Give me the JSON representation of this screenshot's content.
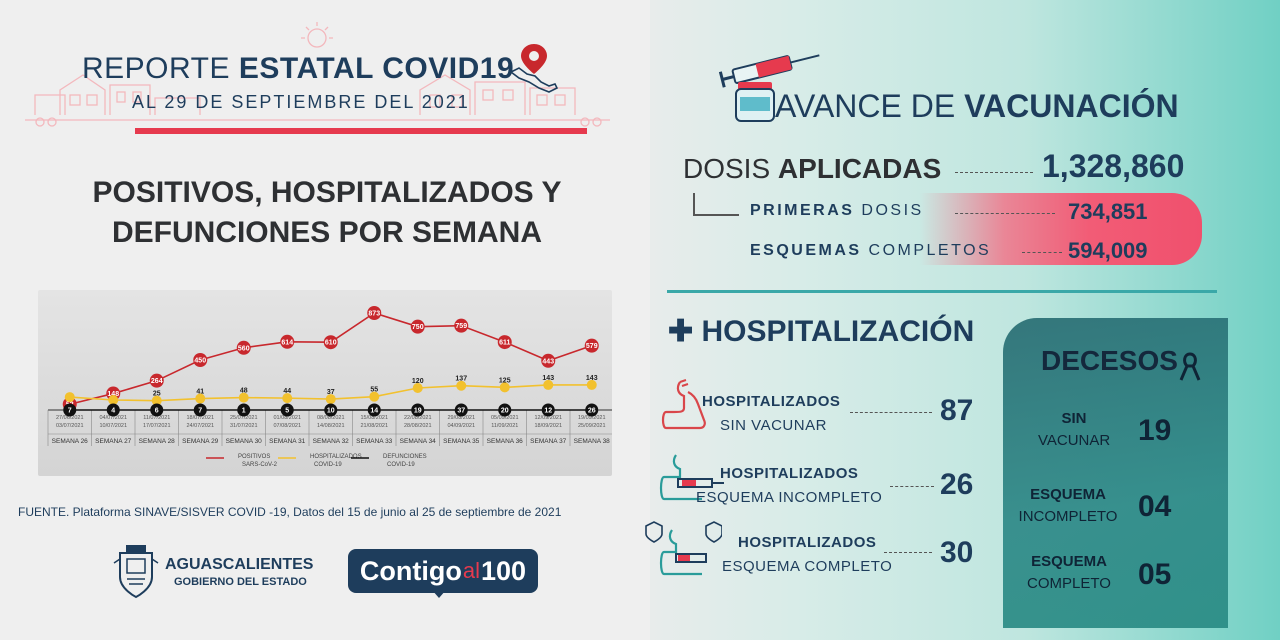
{
  "header": {
    "title_light": "REPORTE",
    "title_bold": "ESTATAL COVID19",
    "date_line": "AL 29 DE SEPTIEMBRE DEL 2021"
  },
  "section_heading_1": "POSITIVOS, HOSPITALIZADOS Y",
  "section_heading_2": "DEFUNCIONES POR SEMANA",
  "chart_data": {
    "type": "line",
    "categories": [
      "SEMANA 26",
      "SEMANA 27",
      "SEMANA 28",
      "SEMANA 29",
      "SEMANA 30",
      "SEMANA 31",
      "SEMANA 32",
      "SEMANA 33",
      "SEMANA 34",
      "SEMANA 35",
      "SEMANA 36",
      "SEMANA 37",
      "SEMANA 38"
    ],
    "date_ranges": [
      [
        "27/06/2021",
        "03/07/2021"
      ],
      [
        "04/07/2021",
        "10/07/2021"
      ],
      [
        "11/07/2021",
        "17/07/2021"
      ],
      [
        "18/07/2021",
        "24/07/2021"
      ],
      [
        "25/07/2021",
        "31/07/2021"
      ],
      [
        "01/08/2021",
        "07/08/2021"
      ],
      [
        "08/08/2021",
        "14/08/2021"
      ],
      [
        "15/08/2021",
        "21/08/2021"
      ],
      [
        "22/08/2021",
        "28/08/2021"
      ],
      [
        "29/08/2021",
        "04/09/2021"
      ],
      [
        "05/09/2021",
        "11/09/2021"
      ],
      [
        "12/09/2021",
        "18/09/2021"
      ],
      [
        "19/09/2021",
        "25/09/2021"
      ]
    ],
    "series": [
      {
        "name": "POSITIVOS SARS-CoV-2",
        "color": "#c8282d",
        "values": [
          52,
          148,
          264,
          450,
          560,
          614,
          610,
          873,
          750,
          759,
          611,
          443,
          579
        ]
      },
      {
        "name": "HOSPITALIZADOS COVID-19",
        "color": "#f2c12e",
        "values": [
          52,
          30,
          25,
          41,
          48,
          44,
          37,
          55,
          120,
          137,
          125,
          143,
          143
        ]
      },
      {
        "name": "DEFUNCIONES COVID-19",
        "color": "#111111",
        "values": [
          7,
          4,
          6,
          7,
          1,
          5,
          10,
          14,
          19,
          37,
          20,
          12,
          26
        ]
      }
    ],
    "point_labels": [
      [
        "52",
        "148",
        "264",
        "450",
        "560",
        "614",
        "610",
        "873",
        "750",
        "759",
        "611",
        "443",
        "579"
      ],
      [
        "",
        "",
        "25",
        "41",
        "48",
        "44",
        "37",
        "55",
        "120",
        "137",
        "125",
        "143",
        "143"
      ],
      [
        "7",
        "4",
        "6",
        "7",
        "1",
        "5",
        "10",
        "14",
        "19",
        "37",
        "20",
        "12",
        "26"
      ]
    ],
    "legend": [
      {
        "line1": "POSITIVOS",
        "line2": "SARS-CoV-2"
      },
      {
        "line1": "HOSPITALIZADOS",
        "line2": "COVID-19"
      },
      {
        "line1": "DEFUNCIONES",
        "line2": "COVID-19"
      }
    ],
    "legend_position": "bottom"
  },
  "source_text": "FUENTE. Plataforma SINAVE/SISVER COVID -19, Datos del 15 de junio al 25 de septiembre de 2021",
  "logos": {
    "ags_name": "AGUASCALIENTES",
    "ags_sub": "GOBIERNO DEL ESTADO",
    "contigo_a": "Contigo",
    "contigo_b": "al",
    "contigo_c": "100"
  },
  "vaccination": {
    "title_light": "AVANCE DE",
    "title_bold": "VACUNACIÓN",
    "dosis_light": "DOSIS",
    "dosis_bold": "APLICADAS",
    "dosis_total": "1,328,860",
    "primeras_bold": "PRIMERAS",
    "primeras_light": "DOSIS",
    "primeras_val": "734,851",
    "esquemas_bold": "ESQUEMAS",
    "esquemas_light": "COMPLETOS",
    "esquemas_val": "594,009"
  },
  "hospitalization": {
    "title": "HOSPITALIZACIÓN",
    "rows": [
      {
        "bold": "HOSPITALIZADOS",
        "light": "SIN VACUNAR",
        "value": "87"
      },
      {
        "bold": "HOSPITALIZADOS",
        "light": "ESQUEMA INCOMPLETO",
        "value": "26"
      },
      {
        "bold": "HOSPITALIZADOS",
        "light": "ESQUEMA COMPLETO",
        "value": "30"
      }
    ]
  },
  "deaths": {
    "title": "DECESOS",
    "rows": [
      {
        "line1": "SIN",
        "line2": "VACUNAR",
        "value": "19"
      },
      {
        "line1": "ESQUEMA",
        "line2": "INCOMPLETO",
        "value": "04"
      },
      {
        "line1": "ESQUEMA",
        "line2": "COMPLETO",
        "value": "05"
      }
    ]
  },
  "colors": {
    "navy": "#1e3d5c",
    "red": "#e63a4e",
    "teal": "#2f8a88"
  }
}
